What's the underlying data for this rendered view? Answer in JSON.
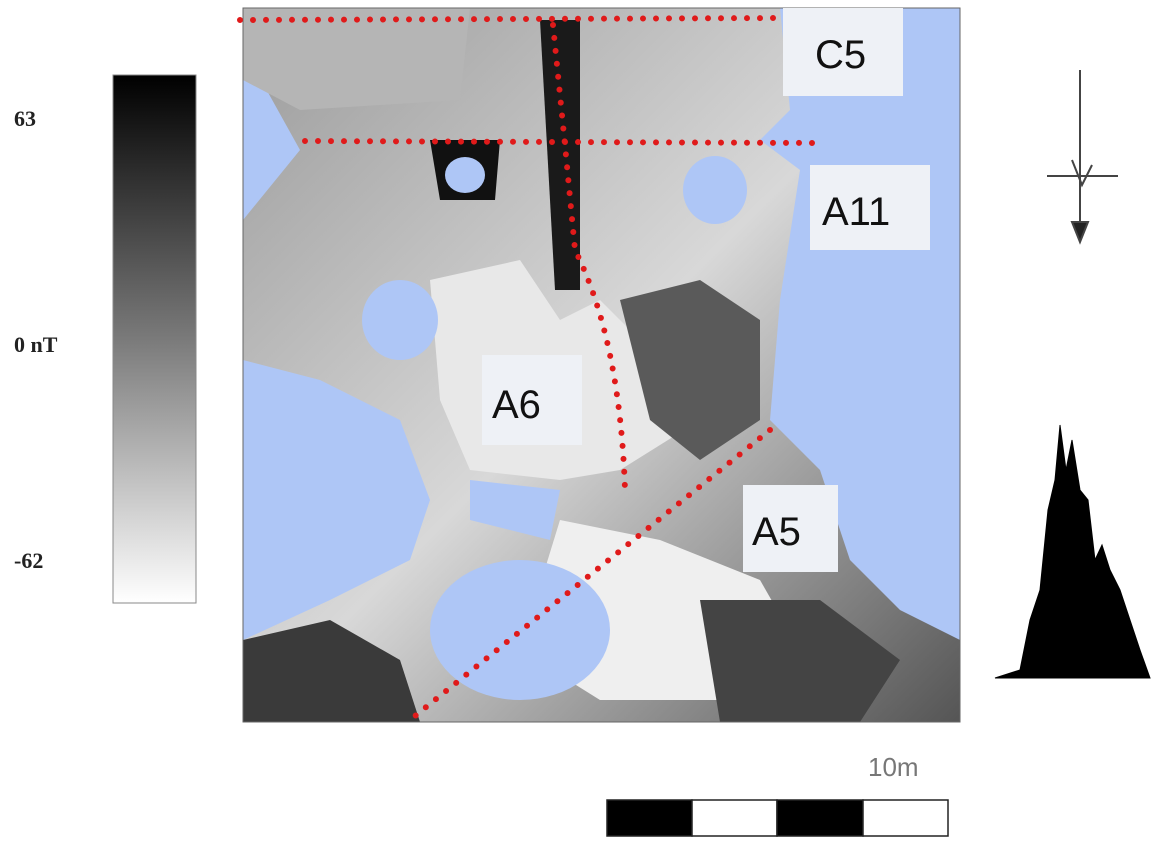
{
  "colorbar": {
    "max_label": "63",
    "mid_label": "0 nT",
    "min_label": "-62"
  },
  "map": {
    "labels": [
      "C5",
      "A11",
      "A6",
      "A5"
    ]
  },
  "scale_bar": {
    "label": "10m"
  }
}
